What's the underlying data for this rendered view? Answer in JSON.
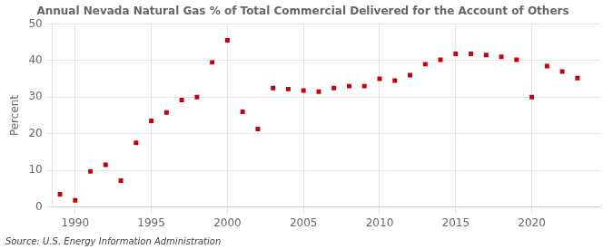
{
  "chart_data": {
    "type": "scatter",
    "title": "Annual Nevada Natural Gas % of Total Commercial Delivered for the Account of Others",
    "y_label": "Percent",
    "source": "Source: U.S. Energy Information Administration",
    "x": [
      1989,
      1990,
      1991,
      1992,
      1993,
      1994,
      1995,
      1996,
      1997,
      1998,
      1999,
      2000,
      2001,
      2002,
      2003,
      2004,
      2005,
      2006,
      2007,
      2008,
      2009,
      2010,
      2011,
      2012,
      2013,
      2014,
      2015,
      2016,
      2017,
      2018,
      2019,
      2020,
      2021,
      2022,
      2023
    ],
    "values": [
      3.5,
      1.8,
      9.7,
      11.5,
      7.2,
      17.5,
      23.5,
      25.8,
      29.2,
      30.0,
      39.5,
      45.5,
      26.0,
      21.3,
      32.5,
      32.2,
      31.8,
      31.5,
      32.5,
      33.0,
      33.0,
      35.0,
      34.5,
      36.0,
      39.0,
      40.2,
      41.8,
      41.8,
      41.5,
      41.0,
      40.2,
      30.0,
      38.5,
      37.0,
      35.2
    ],
    "color": "#cc0000",
    "marker": "square",
    "xlim": [
      1988.5,
      2024.5
    ],
    "xticks": [
      1990,
      1995,
      2000,
      2005,
      2010,
      2015,
      2020
    ],
    "ylim": [
      0,
      50
    ],
    "yticks": [
      0,
      10,
      20,
      30,
      40,
      50
    ],
    "grid": true
  }
}
